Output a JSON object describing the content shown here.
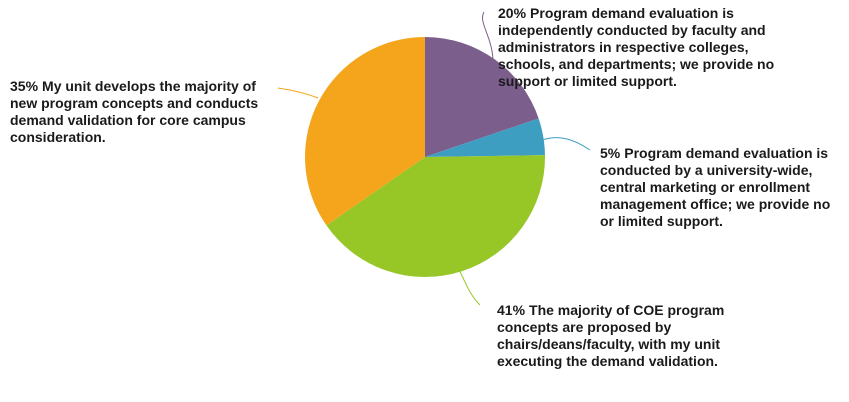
{
  "chart_data": {
    "type": "pie",
    "title": "",
    "slices": [
      {
        "key": "s20",
        "value": 20,
        "color": "#7B5E8C",
        "pct": "20%",
        "label": "Program demand evaluation is independently conducted by faculty and administrators in respective colleges, schools, and departments; we provide no support or limited support."
      },
      {
        "key": "s5",
        "value": 5,
        "color": "#3E9EC2",
        "pct": "5%",
        "label": "Program demand evaluation is conducted by a university-wide, central marketing or enrollment management office; we provide no or limited support."
      },
      {
        "key": "s41",
        "value": 41,
        "color": "#97C627",
        "pct": "41%",
        "label": "The majority of COE program concepts are proposed by chairs/deans/faculty, with my unit executing the demand validation."
      },
      {
        "key": "s35",
        "value": 35,
        "color": "#F4A51C",
        "pct": "35%",
        "label": "My unit develops the majority of new program concepts and conducts demand validation for core campus consideration."
      }
    ]
  }
}
